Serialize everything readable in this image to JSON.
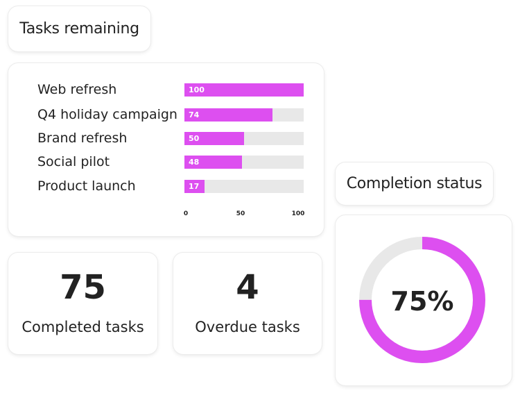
{
  "tasks_remaining": {
    "title": "Tasks remaining",
    "chart_data": {
      "type": "bar",
      "orientation": "horizontal",
      "categories": [
        "Web refresh",
        "Q4 holiday campaign",
        "Brand refresh",
        "Social pilot",
        "Product launch"
      ],
      "values": [
        100,
        74,
        50,
        48,
        17
      ],
      "xlim": [
        0,
        100
      ],
      "ticks": [
        "0",
        "50",
        "100"
      ],
      "bar_color": "#dd4ff0",
      "track_color": "#e8e8e8"
    }
  },
  "completed": {
    "value": "75",
    "label": "Completed tasks"
  },
  "overdue": {
    "value": "4",
    "label": "Overdue tasks"
  },
  "completion_status": {
    "title": "Completion status",
    "percent_label": "75%",
    "percent": 75,
    "fill_color": "#dd4ff0",
    "track_color": "#e8e8e8"
  }
}
